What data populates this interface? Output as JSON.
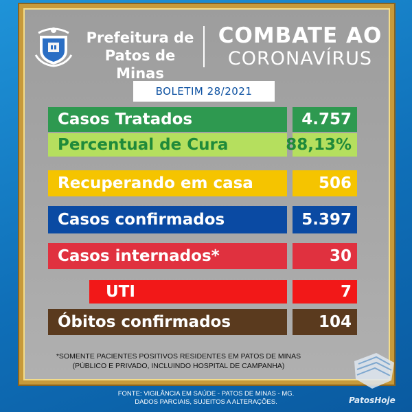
{
  "header": {
    "prefeitura_line1": "Prefeitura de",
    "prefeitura_line2": "Patos de Minas",
    "combate": "COMBATE AO",
    "coronavirus": "CORONAVÍRUS",
    "crest_icon": "municipal-crest-icon"
  },
  "boletim": "BOLETIM 28/2021",
  "rows": [
    {
      "label": "Casos Tratados",
      "value": "4.757",
      "label_color": "#2e9950",
      "value_color": "#2e9950",
      "text_color": "#ffffff"
    },
    {
      "label": "Percentual de Cura",
      "value": "88,13%",
      "label_color": "#b5df5e",
      "value_color": "#b5df5e",
      "text_color": "#1f8a3a"
    },
    {
      "label": "Recuperando em casa",
      "value": "506",
      "label_color": "#f5c400",
      "value_color": "#f5c400",
      "text_color": "#ffffff"
    },
    {
      "label": "Casos confirmados",
      "value": "5.397",
      "label_color": "#0a4aa3",
      "value_color": "#0a4aa3",
      "text_color": "#ffffff"
    },
    {
      "label": "Casos internados*",
      "value": "30",
      "label_color": "#e0313f",
      "value_color": "#e0313f",
      "text_color": "#ffffff"
    },
    {
      "label": "UTI",
      "value": "7",
      "label_color": "#f21818",
      "value_color": "#f21818",
      "text_color": "#ffffff"
    },
    {
      "label": "Óbitos confirmados",
      "value": "104",
      "label_color": "#5a3a1e",
      "value_color": "#5a3a1e",
      "text_color": "#ffffff"
    }
  ],
  "note": {
    "line1": "*SOMENTE PACIENTES POSITIVOS RESIDENTES EM PATOS DE MINAS",
    "line2": "(PÚBLICO E PRIVADO, INCLUINDO HOSPITAL DE CAMPANHA)"
  },
  "footer": {
    "line1": "FONTE: VIGILÂNCIA EM SAÚDE - PATOS DE MINAS - MG.",
    "line2": "DADOS PARCIAIS, SUJEITOS A ALTERAÇÕES."
  },
  "brand": {
    "name": "PatosHoje",
    "icon": "face-mask-icon"
  },
  "colors": {
    "background": "#1581cc",
    "frame_gold": "#c79a3b",
    "panel_gray": "#a6a6a6",
    "boletim_text": "#0a4fa0"
  }
}
